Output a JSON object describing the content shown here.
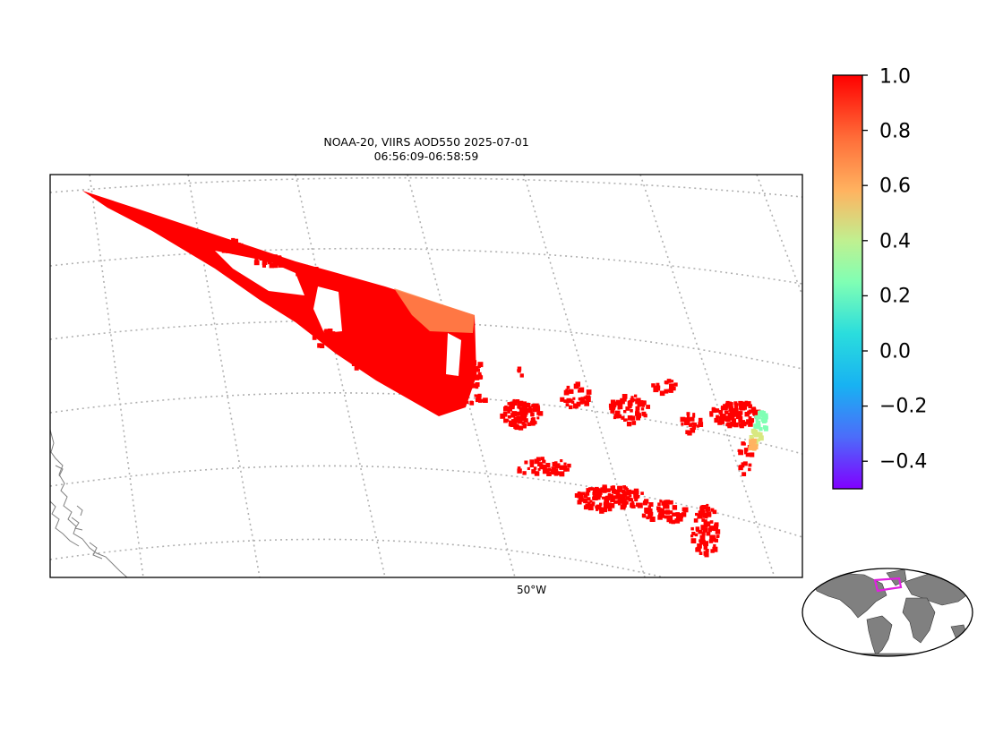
{
  "map": {
    "title_line1": "NOAA-20, VIIRS AOD550 2025-07-01",
    "title_line2": "06:56:09-06:58:59",
    "lon_label": "50°W",
    "variable": "AOD550",
    "satellite": "NOAA-20",
    "instrument": "VIIRS",
    "colormap": "rainbow",
    "gridlines": "dotted gray",
    "coastline_color": "#808080",
    "dominant_value_color": "#ff0000"
  },
  "colorbar": {
    "min": -0.5,
    "max": 1.0,
    "ticks": [
      "1.0",
      "0.8",
      "0.6",
      "0.4",
      "0.2",
      "0.0",
      "−0.2",
      "−0.4"
    ],
    "tick_values": [
      1.0,
      0.8,
      0.6,
      0.4,
      0.2,
      0.0,
      -0.2,
      -0.4
    ],
    "colors": [
      "#8000ff",
      "#4c6cfa",
      "#18b2f2",
      "#2adddd",
      "#80ffb4",
      "#c0f090",
      "#ffb360",
      "#ff6c38",
      "#ff0000"
    ]
  },
  "inset": {
    "description": "global locator map",
    "land_color": "#808080",
    "box_color": "#e020e0"
  }
}
